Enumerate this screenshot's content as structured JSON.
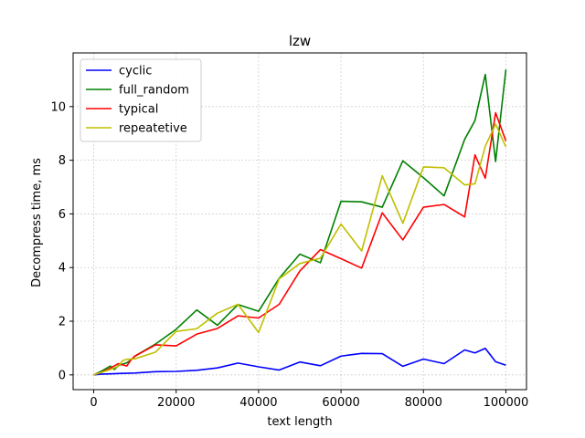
{
  "chart_data": {
    "type": "line",
    "title": "lzw",
    "xlabel": "text length",
    "ylabel": "Decompress time, ms",
    "xlim": [
      -5000,
      105000
    ],
    "ylim": [
      -0.55,
      12.0
    ],
    "xticks": [
      0,
      20000,
      40000,
      60000,
      80000,
      100000
    ],
    "xtick_labels": [
      "0",
      "20000",
      "40000",
      "60000",
      "80000",
      "100000"
    ],
    "yticks": [
      0,
      2,
      4,
      6,
      8,
      10
    ],
    "ytick_labels": [
      "0",
      "2",
      "4",
      "6",
      "8",
      "10"
    ],
    "grid": true,
    "legend_position": "upper-left",
    "series": [
      {
        "name": "cyclic",
        "color": "#0000ff",
        "x": [
          0,
          2000,
          4000,
          6000,
          8000,
          10000,
          15000,
          20000,
          25000,
          30000,
          35000,
          40000,
          45000,
          50000,
          55000,
          60000,
          65000,
          70000,
          75000,
          80000,
          85000,
          90000,
          92500,
          95000,
          97500,
          100000
        ],
        "y": [
          0,
          0.03,
          0.04,
          0.05,
          0.06,
          0.07,
          0.12,
          0.13,
          0.17,
          0.26,
          0.44,
          0.3,
          0.18,
          0.48,
          0.34,
          0.7,
          0.8,
          0.79,
          0.32,
          0.59,
          0.42,
          0.93,
          0.82,
          0.99,
          0.49,
          0.36
        ]
      },
      {
        "name": "full_random",
        "color": "#008000",
        "x": [
          0,
          2000,
          4000,
          5000,
          6000,
          8000,
          9000,
          10000,
          15000,
          20000,
          25000,
          30000,
          35000,
          40000,
          45000,
          50000,
          55000,
          60000,
          65000,
          70000,
          75000,
          80000,
          85000,
          90000,
          92500,
          95000,
          97500,
          100000
        ],
        "y": [
          0,
          0.15,
          0.33,
          0.2,
          0.35,
          0.45,
          0.55,
          0.7,
          1.15,
          1.7,
          2.42,
          1.85,
          2.62,
          2.37,
          3.6,
          4.5,
          4.18,
          6.47,
          6.45,
          6.25,
          7.98,
          7.35,
          6.67,
          8.78,
          9.48,
          11.2,
          7.95,
          11.38
        ]
      },
      {
        "name": "typical",
        "color": "#ff0000",
        "x": [
          0,
          2000,
          4000,
          6000,
          8000,
          9000,
          10000,
          15000,
          20000,
          25000,
          30000,
          35000,
          40000,
          45000,
          50000,
          55000,
          60000,
          65000,
          70000,
          75000,
          80000,
          85000,
          90000,
          92500,
          95000,
          97500,
          100000
        ],
        "y": [
          0,
          0.1,
          0.25,
          0.42,
          0.33,
          0.55,
          0.7,
          1.12,
          1.08,
          1.52,
          1.73,
          2.2,
          2.12,
          2.63,
          3.87,
          4.67,
          4.33,
          3.98,
          6.04,
          5.03,
          6.25,
          6.35,
          5.89,
          8.2,
          7.33,
          9.77,
          8.72
        ]
      },
      {
        "name": "repeatetive",
        "color": "#bfbf00",
        "x": [
          0,
          2000,
          4000,
          6000,
          7000,
          8000,
          10000,
          15000,
          20000,
          25000,
          30000,
          35000,
          40000,
          45000,
          50000,
          55000,
          60000,
          65000,
          70000,
          75000,
          80000,
          85000,
          90000,
          92500,
          95000,
          97500,
          100000
        ],
        "y": [
          0,
          0.1,
          0.2,
          0.32,
          0.53,
          0.58,
          0.6,
          0.85,
          1.62,
          1.72,
          2.3,
          2.63,
          1.58,
          3.58,
          4.15,
          4.35,
          5.62,
          4.62,
          7.42,
          5.65,
          7.75,
          7.72,
          7.08,
          7.12,
          8.52,
          9.35,
          8.5
        ]
      }
    ]
  }
}
